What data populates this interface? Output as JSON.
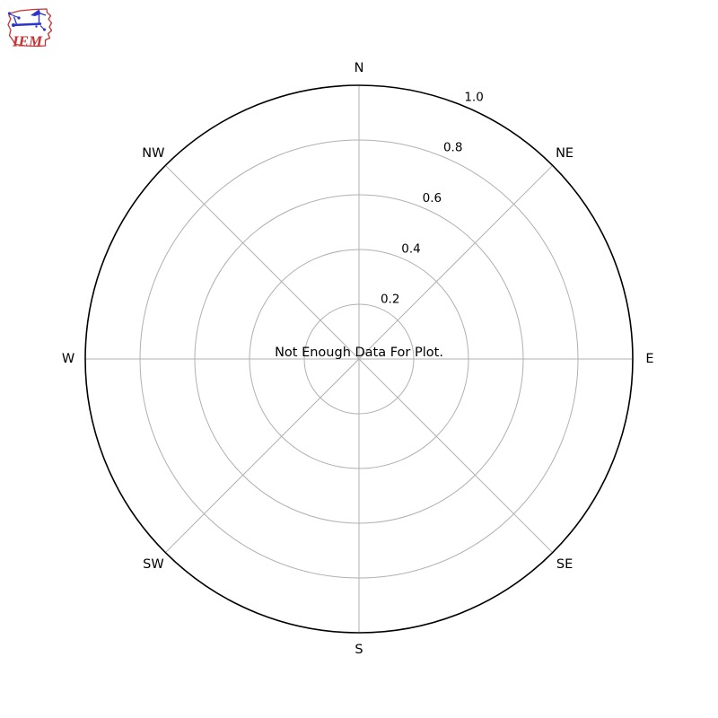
{
  "logo": {
    "text": "IEM",
    "title": "Iowa Environmental Mesonet",
    "icon": "iowa-state-weather-vane-icon",
    "outline_color": "#c63333",
    "instrument_color": "#2b35c8",
    "text_color": "#c63333"
  },
  "chart_data": {
    "type": "polar",
    "subtype": "wind-rose",
    "title": "",
    "annotation": "Not Enough Data For Plot.",
    "direction_labels": [
      "N",
      "NE",
      "E",
      "SE",
      "S",
      "SW",
      "W",
      "NW"
    ],
    "radial_ticks": [
      0.2,
      0.4,
      0.6,
      0.8,
      1.0
    ],
    "radial_tick_labels": [
      "0.2",
      "0.4",
      "0.6",
      "0.8",
      "1.0"
    ],
    "rlim": [
      0,
      1.0
    ],
    "rlabel_angle_deg": 22.5,
    "grid": true,
    "legend": null,
    "series": [],
    "colors": {
      "background": "#ffffff",
      "grid": "#b0b0b0",
      "outer_ring": "#000000",
      "text": "#000000"
    }
  }
}
